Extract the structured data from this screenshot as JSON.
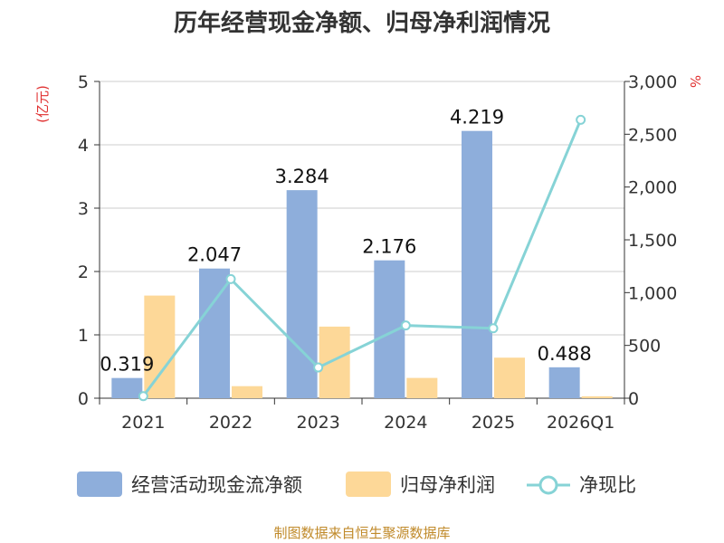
{
  "chart_data": {
    "type": "bar",
    "title": "历年经营现金净额、归母净利润情况",
    "categories": [
      "2021",
      "2022",
      "2023",
      "2024",
      "2025",
      "2026Q1"
    ],
    "series": [
      {
        "name": "经营活动现金流净额",
        "type": "bar",
        "axis": "left",
        "color": "#8eaedb",
        "values": [
          0.319,
          2.047,
          3.284,
          2.176,
          4.219,
          0.488
        ],
        "labels": [
          "0.319",
          "2.047",
          "3.284",
          "2.176",
          "4.219",
          "0.488"
        ]
      },
      {
        "name": "归母净利润",
        "type": "bar",
        "axis": "left",
        "color": "#fdd898",
        "values": [
          1.62,
          0.19,
          1.13,
          0.32,
          0.64,
          0.03
        ]
      },
      {
        "name": "净现比",
        "type": "line",
        "axis": "right",
        "color": "#86d3d6",
        "values": [
          19.7,
          1128,
          291,
          689,
          662,
          2637
        ]
      }
    ],
    "y_left": {
      "unit": "(亿元)",
      "min": 0,
      "max": 5,
      "ticks": [
        "0",
        "1",
        "2",
        "3",
        "4",
        "5"
      ]
    },
    "y_right": {
      "unit": "%",
      "min": 0,
      "max": 3000,
      "ticks": [
        "0",
        "500",
        "1,000",
        "1,500",
        "2,000",
        "2,500",
        "3,000"
      ]
    },
    "grid": true,
    "legend_position": "bottom"
  },
  "source": "制图数据来自恒生聚源数据库"
}
